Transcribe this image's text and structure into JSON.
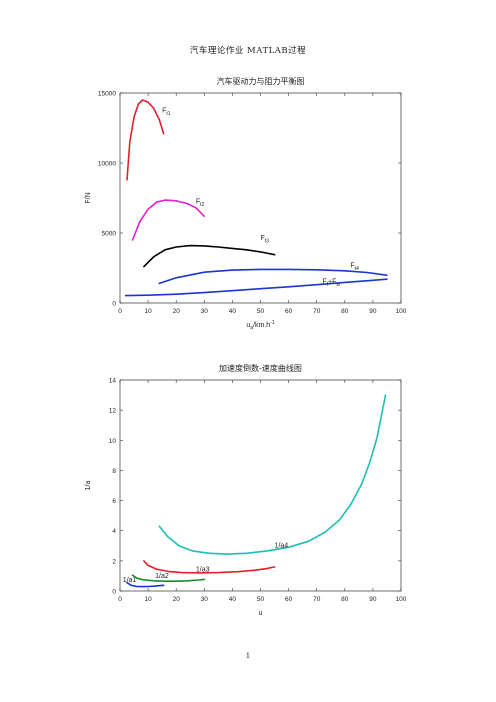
{
  "header": {
    "text": "汽车理论作业    MATLAB过程"
  },
  "page_number": "1",
  "chart_data": [
    {
      "type": "line",
      "title": "汽车驱动力与阻力平衡图",
      "xlabel_main": "u",
      "xlabel_sub": "a",
      "xlabel_rest": "/km.h",
      "xlabel_sup": "-1",
      "ylabel": "F/N",
      "xlim": [
        0,
        100
      ],
      "ylim": [
        0,
        15000
      ],
      "xticks": [
        0,
        10,
        20,
        30,
        40,
        50,
        60,
        70,
        80,
        90,
        100
      ],
      "yticks": [
        0,
        5000,
        10000,
        15000
      ],
      "grid": false,
      "series": [
        {
          "label_main": "F",
          "label_sub": "t1",
          "color": "#e0202a",
          "label_at": [
            15,
            13600
          ],
          "points": [
            [
              2.5,
              8800
            ],
            [
              3.5,
              11500
            ],
            [
              5,
              13300
            ],
            [
              6.5,
              14200
            ],
            [
              8,
              14500
            ],
            [
              10,
              14350
            ],
            [
              12,
              13900
            ],
            [
              14,
              13100
            ],
            [
              15.5,
              12100
            ]
          ]
        },
        {
          "label_main": "F",
          "label_sub": "t2",
          "color": "#e020d0",
          "label_at": [
            27,
            7100
          ],
          "points": [
            [
              4.5,
              4500
            ],
            [
              7,
              5800
            ],
            [
              10,
              6700
            ],
            [
              13,
              7200
            ],
            [
              16,
              7350
            ],
            [
              20,
              7300
            ],
            [
              24,
              7100
            ],
            [
              27,
              6800
            ],
            [
              30,
              6200
            ]
          ]
        },
        {
          "label_main": "F",
          "label_sub": "t3",
          "color": "#000000",
          "label_at": [
            50,
            4500
          ],
          "points": [
            [
              8.5,
              2600
            ],
            [
              12,
              3300
            ],
            [
              16,
              3800
            ],
            [
              20,
              4000
            ],
            [
              25,
              4100
            ],
            [
              30,
              4080
            ],
            [
              35,
              4000
            ],
            [
              40,
              3900
            ],
            [
              45,
              3800
            ],
            [
              50,
              3650
            ],
            [
              55,
              3450
            ]
          ]
        },
        {
          "label_main": "F",
          "label_sub": "t4",
          "color": "#1a35d0",
          "label_at": [
            82,
            2550
          ],
          "points": [
            [
              14,
              1400
            ],
            [
              20,
              1800
            ],
            [
              30,
              2200
            ],
            [
              40,
              2350
            ],
            [
              50,
              2400
            ],
            [
              60,
              2400
            ],
            [
              70,
              2370
            ],
            [
              80,
              2300
            ],
            [
              88,
              2180
            ],
            [
              95,
              1980
            ]
          ]
        },
        {
          "label_main": "F",
          "label_sub": "f",
          "label_mid": "+F",
          "label_sub2": "w",
          "color": "#1a35d0",
          "label_at": [
            72,
            1400
          ],
          "points": [
            [
              2,
              530
            ],
            [
              10,
              560
            ],
            [
              20,
              630
            ],
            [
              30,
              740
            ],
            [
              40,
              880
            ],
            [
              50,
              1020
            ],
            [
              60,
              1160
            ],
            [
              70,
              1310
            ],
            [
              80,
              1470
            ],
            [
              90,
              1620
            ],
            [
              95,
              1700
            ]
          ]
        }
      ]
    },
    {
      "type": "line",
      "title": "加速度倒数-速度曲线图",
      "xlabel_main": "u",
      "ylabel": "1/a",
      "xlim": [
        0,
        100
      ],
      "ylim": [
        0,
        14
      ],
      "xticks": [
        0,
        10,
        20,
        30,
        40,
        50,
        60,
        70,
        80,
        90,
        100
      ],
      "yticks": [
        0,
        2,
        4,
        6,
        8,
        10,
        12,
        14
      ],
      "grid": false,
      "series": [
        {
          "label_main": "1/a1",
          "color": "#1a35d0",
          "label_at": [
            1,
            0.6
          ],
          "points": [
            [
              2.5,
              0.55
            ],
            [
              4,
              0.38
            ],
            [
              6,
              0.3
            ],
            [
              8,
              0.29
            ],
            [
              10,
              0.3
            ],
            [
              12,
              0.32
            ],
            [
              14,
              0.35
            ],
            [
              15.5,
              0.38
            ]
          ]
        },
        {
          "label_main": "1/a2",
          "color": "#1a8a2a",
          "label_at": [
            12.5,
            0.85
          ],
          "points": [
            [
              4.5,
              1.05
            ],
            [
              6,
              0.85
            ],
            [
              8,
              0.75
            ],
            [
              12,
              0.68
            ],
            [
              16,
              0.65
            ],
            [
              20,
              0.65
            ],
            [
              24,
              0.68
            ],
            [
              28,
              0.73
            ],
            [
              30,
              0.77
            ]
          ]
        },
        {
          "label_main": "1/a3",
          "color": "#e0202a",
          "label_at": [
            27,
            1.3
          ],
          "points": [
            [
              8.5,
              2.0
            ],
            [
              10,
              1.7
            ],
            [
              13,
              1.45
            ],
            [
              17,
              1.3
            ],
            [
              22,
              1.22
            ],
            [
              28,
              1.2
            ],
            [
              35,
              1.22
            ],
            [
              42,
              1.28
            ],
            [
              48,
              1.38
            ],
            [
              52,
              1.48
            ],
            [
              55,
              1.6
            ]
          ]
        },
        {
          "label_main": "1/a4",
          "color": "#1bbfb2",
          "label_at": [
            55,
            2.9
          ],
          "points": [
            [
              14,
              4.3
            ],
            [
              17,
              3.6
            ],
            [
              21,
              3.0
            ],
            [
              26,
              2.65
            ],
            [
              32,
              2.5
            ],
            [
              38,
              2.45
            ],
            [
              45,
              2.5
            ],
            [
              52,
              2.65
            ],
            [
              60,
              2.9
            ],
            [
              67,
              3.3
            ],
            [
              73,
              3.9
            ],
            [
              78,
              4.7
            ],
            [
              82,
              5.7
            ],
            [
              86,
              7.1
            ],
            [
              89,
              8.6
            ],
            [
              91.5,
              10.2
            ],
            [
              93,
              11.6
            ],
            [
              94.5,
              13.0
            ]
          ]
        }
      ]
    }
  ]
}
